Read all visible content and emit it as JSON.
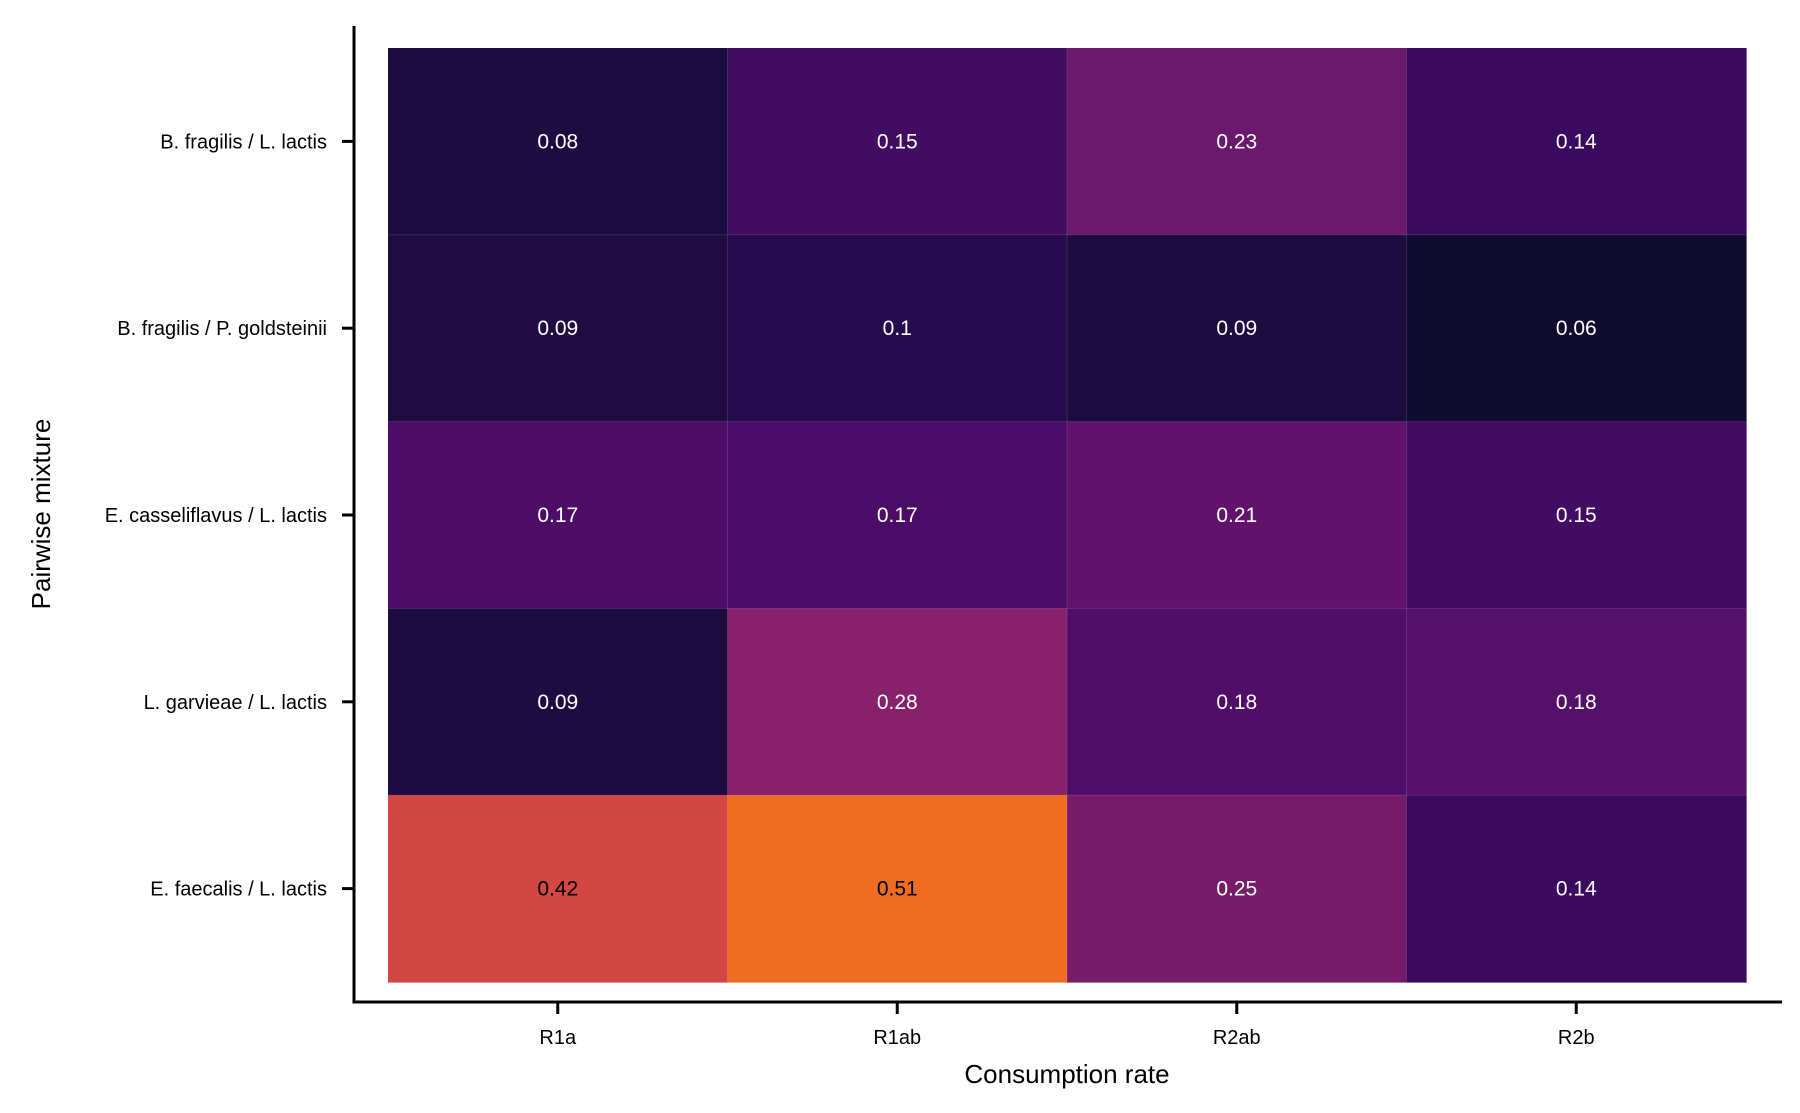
{
  "chart_data": {
    "type": "heatmap",
    "title": "",
    "xlabel": "Consumption rate",
    "ylabel": "Pairwise mixture",
    "x_categories": [
      "R1a",
      "R1ab",
      "R2ab",
      "R2b"
    ],
    "y_categories": [
      "B. fragilis / L. lactis",
      "B. fragilis / P. goldsteinii",
      "E. casseliflavus / L. lactis",
      "L. garvieae / L. lactis",
      "E. faecalis / L. lactis"
    ],
    "values": [
      [
        0.08,
        0.15,
        0.23,
        0.14
      ],
      [
        0.09,
        0.1,
        0.09,
        0.06
      ],
      [
        0.17,
        0.17,
        0.21,
        0.15
      ],
      [
        0.09,
        0.28,
        0.18,
        0.18
      ],
      [
        0.42,
        0.51,
        0.25,
        0.14
      ]
    ],
    "value_labels": [
      [
        "0.08",
        "0.15",
        "0.23",
        "0.14"
      ],
      [
        "0.09",
        "0.1",
        "0.09",
        "0.06"
      ],
      [
        "0.17",
        "0.17",
        "0.21",
        "0.15"
      ],
      [
        "0.09",
        "0.28",
        "0.18",
        "0.18"
      ],
      [
        "0.42",
        "0.51",
        "0.25",
        "0.14"
      ]
    ],
    "colormap": "inferno",
    "colorbar": false,
    "grid": false,
    "colors": {
      "R0C0": "#1d0c3f",
      "R0C1": "#420c63",
      "R0C2": "#6b196d",
      "R0C3": "#3a0a5f",
      "R1C0": "#1f0c42",
      "R1C1": "#240c4f",
      "R1C2": "#1d0c3f",
      "R1C3": "#100c2d",
      "R2C0": "#4d0d67",
      "R2C1": "#4b0c68",
      "R2C2": "#61136b",
      "R2C3": "#420c63",
      "R3C0": "#1d0c3f",
      "R3C1": "#87216a",
      "R3C2": "#510e68",
      "R3C3": "#551069",
      "R4C0": "#d24644",
      "R4C1": "#ef6c23",
      "R4C2": "#771c6b",
      "R4C3": "#390a5e"
    }
  }
}
